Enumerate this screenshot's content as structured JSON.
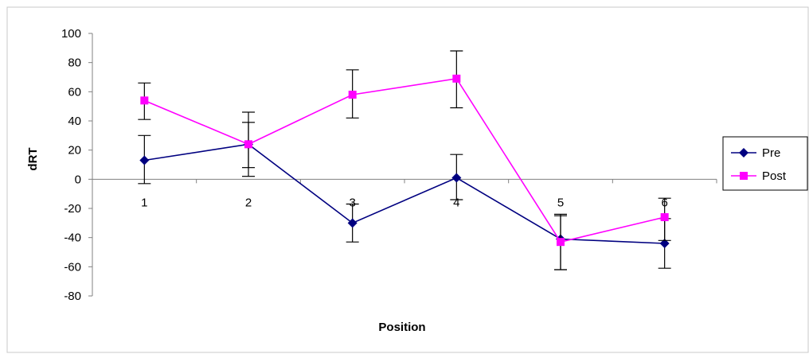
{
  "chart_data": {
    "type": "line",
    "categories": [
      "1",
      "2",
      "3",
      "4",
      "5",
      "6"
    ],
    "xlabel": "Position",
    "ylabel": "dRT",
    "ylim": [
      -80,
      100
    ],
    "yticks": [
      100,
      80,
      60,
      40,
      20,
      0,
      -20,
      -40,
      -60,
      -80
    ],
    "grid": "off",
    "legend": "right",
    "series": [
      {
        "name": "Pre",
        "color": "#000080",
        "marker": "diamond",
        "values": [
          13,
          24,
          -30,
          1,
          -41,
          -44
        ],
        "error_low": [
          -3,
          2,
          -43,
          -14,
          -62,
          -61
        ],
        "error_high": [
          30,
          39,
          -17,
          17,
          -24,
          -27
        ]
      },
      {
        "name": "Post",
        "color": "#ff00ff",
        "marker": "square",
        "values": [
          54,
          24,
          58,
          69,
          -43,
          -26
        ],
        "error_low": [
          41,
          8,
          42,
          49,
          -62,
          -42
        ],
        "error_high": [
          66,
          46,
          75,
          88,
          -25,
          -13
        ]
      }
    ]
  }
}
